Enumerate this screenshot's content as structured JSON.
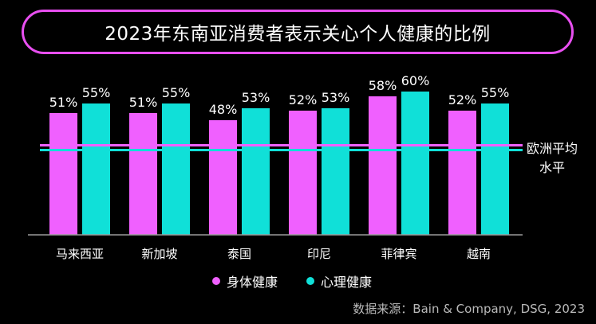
{
  "colors": {
    "background": "#000000",
    "physical": "#f060ff",
    "mental": "#10e0d8",
    "title_border": "#e84ff0",
    "text": "#ffffff",
    "muted": "#b9b9b9"
  },
  "chart_data": {
    "type": "bar",
    "title": "2023年东南亚消费者表示关心个人健康的比例",
    "categories": [
      "马来西亚",
      "新加坡",
      "泰国",
      "印尼",
      "菲律宾",
      "越南"
    ],
    "series": [
      {
        "name": "身体健康",
        "values": [
          51,
          51,
          48,
          52,
          58,
          52
        ],
        "labels": [
          "51%",
          "51%",
          "48%",
          "52%",
          "58%",
          "52%"
        ],
        "color": "#f060ff"
      },
      {
        "name": "心理健康",
        "values": [
          55,
          55,
          53,
          53,
          60,
          55
        ],
        "labels": [
          "55%",
          "55%",
          "53%",
          "53%",
          "60%",
          "55%"
        ],
        "color": "#10e0d8"
      }
    ],
    "reference_lines": [
      {
        "series": "身体健康",
        "value": 37.5,
        "color": "#f060ff"
      },
      {
        "series": "心理健康",
        "value": 35.5,
        "color": "#10e0d8"
      }
    ],
    "reference_label_lines": [
      "欧洲平均",
      "水平"
    ],
    "ylim": [
      0,
      60
    ],
    "grid": false,
    "legend_position": "bottom"
  },
  "source": "数据来源：Bain & Company, DSG, 2023"
}
